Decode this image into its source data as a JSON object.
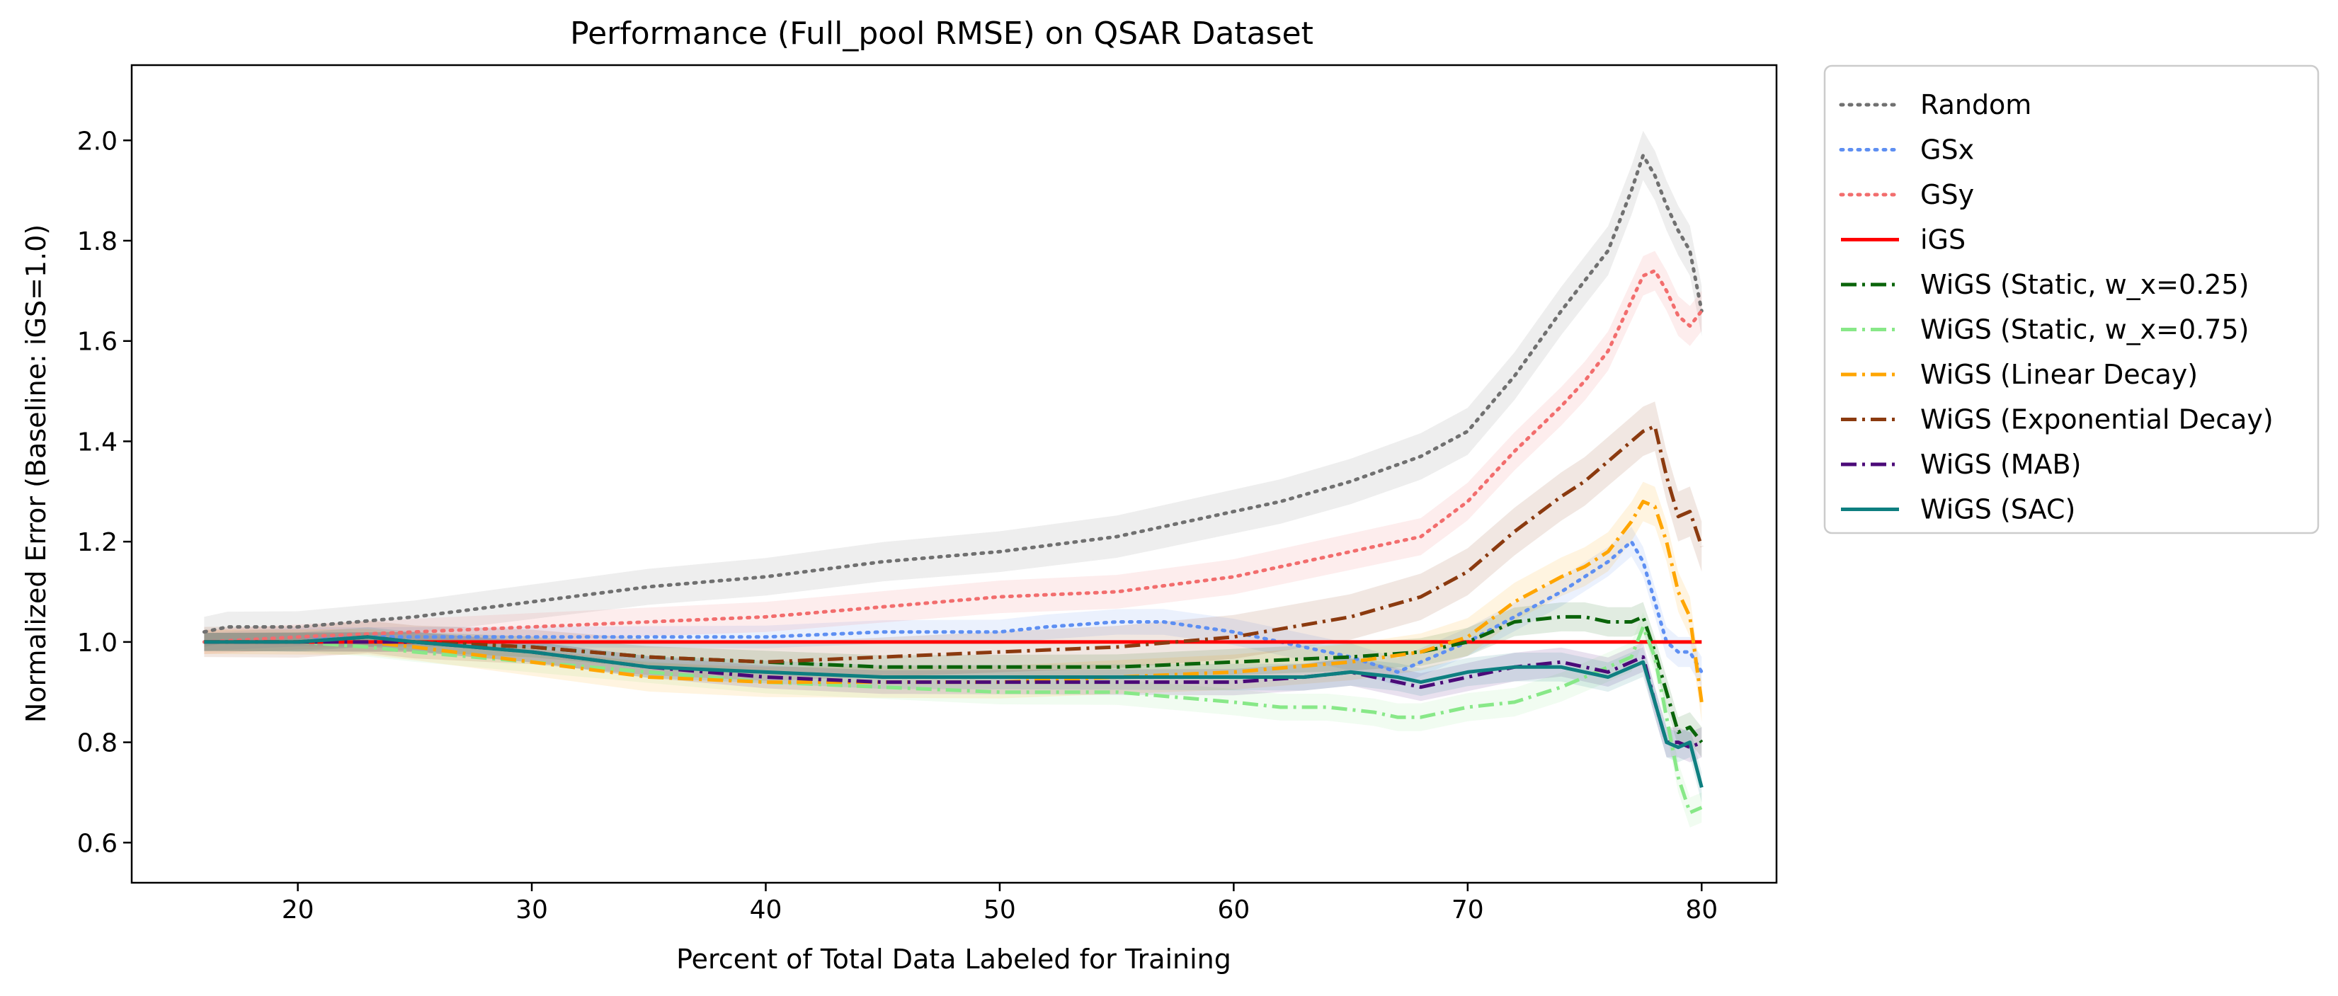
{
  "chart_data": {
    "type": "line",
    "title": "Performance (Full_pool RMSE) on QSAR Dataset",
    "xlabel": "Percent of Total Data Labeled for Training",
    "ylabel": "Normalized Error (Baseline: iGS=1.0)",
    "xlim": [
      12.9,
      83.2
    ],
    "ylim": [
      0.52,
      2.15
    ],
    "xticks": [
      20,
      30,
      40,
      50,
      60,
      70,
      80
    ],
    "yticks": [
      0.6,
      0.8,
      1.0,
      1.2,
      1.4,
      1.6,
      1.8,
      2.0
    ],
    "xtick_labels": [
      "20",
      "30",
      "40",
      "50",
      "60",
      "70",
      "80"
    ],
    "ytick_labels": [
      "0.6",
      "0.8",
      "1.0",
      "1.2",
      "1.4",
      "1.6",
      "1.8",
      "2.0"
    ],
    "grid": false,
    "legend_position": "outside-right-top",
    "series": [
      {
        "name": "Random",
        "color": "#707070",
        "dash": "dotted",
        "band": 0.05,
        "x": [
          16,
          17,
          20,
          25,
          30,
          35,
          40,
          45,
          50,
          55,
          58,
          60,
          62,
          65,
          68,
          70,
          72,
          74,
          75,
          76,
          77,
          77.5,
          78,
          78.5,
          79,
          79.5,
          80
        ],
        "y": [
          1.02,
          1.03,
          1.03,
          1.05,
          1.08,
          1.11,
          1.13,
          1.16,
          1.18,
          1.21,
          1.24,
          1.26,
          1.28,
          1.32,
          1.37,
          1.42,
          1.53,
          1.66,
          1.72,
          1.78,
          1.9,
          1.97,
          1.93,
          1.87,
          1.82,
          1.78,
          1.66
        ]
      },
      {
        "name": "GSx",
        "color": "#5e8ff2",
        "dash": "dotted",
        "band": 0.03,
        "x": [
          16,
          20,
          25,
          30,
          35,
          40,
          45,
          50,
          52,
          55,
          57,
          60,
          62,
          65,
          67,
          68,
          70,
          72,
          74,
          75,
          76,
          77,
          77.5,
          78,
          78.5,
          79,
          79.5,
          80
        ],
        "y": [
          1.0,
          1.01,
          1.01,
          1.01,
          1.01,
          1.01,
          1.02,
          1.02,
          1.03,
          1.04,
          1.04,
          1.02,
          1.0,
          0.97,
          0.94,
          0.96,
          1.0,
          1.05,
          1.1,
          1.13,
          1.16,
          1.2,
          1.16,
          1.08,
          1.0,
          0.98,
          0.98,
          0.94
        ]
      },
      {
        "name": "GSy",
        "color": "#f26d6d",
        "dash": "dotted",
        "band": 0.04,
        "x": [
          16,
          20,
          25,
          30,
          35,
          40,
          45,
          50,
          55,
          60,
          65,
          68,
          70,
          72,
          74,
          75,
          76,
          77,
          77.5,
          78,
          78.5,
          79,
          79.5,
          80
        ],
        "y": [
          1.0,
          1.01,
          1.02,
          1.03,
          1.04,
          1.05,
          1.07,
          1.09,
          1.1,
          1.13,
          1.18,
          1.21,
          1.28,
          1.38,
          1.47,
          1.52,
          1.58,
          1.68,
          1.73,
          1.74,
          1.7,
          1.65,
          1.63,
          1.66
        ]
      },
      {
        "name": "iGS",
        "color": "#ff0000",
        "dash": "solid",
        "band": 0,
        "x": [
          16,
          80
        ],
        "y": [
          1.0,
          1.0
        ]
      },
      {
        "name": "WiGS (Static, w_x=0.25)",
        "color": "#0a640a",
        "dash": "dashdot",
        "band": 0.03,
        "x": [
          16,
          20,
          23,
          25,
          30,
          35,
          40,
          45,
          50,
          55,
          60,
          65,
          68,
          70,
          72,
          74,
          75,
          76,
          77,
          77.5,
          78,
          78.5,
          79,
          79.5,
          80
        ],
        "y": [
          1.0,
          1.0,
          1.0,
          1.0,
          0.99,
          0.97,
          0.96,
          0.95,
          0.95,
          0.95,
          0.96,
          0.97,
          0.98,
          1.0,
          1.04,
          1.05,
          1.05,
          1.04,
          1.04,
          1.05,
          0.98,
          0.9,
          0.82,
          0.83,
          0.8
        ]
      },
      {
        "name": "WiGS (Static, w_x=0.75)",
        "color": "#88e888",
        "dash": "dashdot",
        "band": 0.03,
        "x": [
          16,
          20,
          23,
          25,
          30,
          35,
          40,
          45,
          50,
          55,
          60,
          62,
          64,
          66,
          67,
          68,
          70,
          72,
          74,
          75,
          76,
          77,
          77.5,
          78,
          78.5,
          79,
          79.5,
          80
        ],
        "y": [
          1.0,
          1.0,
          0.99,
          0.98,
          0.96,
          0.94,
          0.92,
          0.91,
          0.9,
          0.9,
          0.88,
          0.87,
          0.87,
          0.86,
          0.85,
          0.85,
          0.87,
          0.88,
          0.91,
          0.93,
          0.95,
          0.97,
          1.03,
          0.97,
          0.85,
          0.73,
          0.66,
          0.67
        ]
      },
      {
        "name": "WiGS (Linear Decay)",
        "color": "#ffa500",
        "dash": "dashdot",
        "band": 0.04,
        "x": [
          16,
          20,
          23,
          25,
          30,
          35,
          40,
          45,
          50,
          55,
          60,
          65,
          68,
          70,
          72,
          74,
          75,
          76,
          77,
          77.5,
          78,
          78.5,
          79,
          79.5,
          80
        ],
        "y": [
          1.0,
          1.0,
          1.0,
          0.99,
          0.96,
          0.93,
          0.92,
          0.92,
          0.92,
          0.93,
          0.94,
          0.96,
          0.98,
          1.01,
          1.08,
          1.13,
          1.15,
          1.18,
          1.24,
          1.28,
          1.27,
          1.2,
          1.1,
          1.05,
          0.88
        ]
      },
      {
        "name": "WiGS (Exponential Decay)",
        "color": "#8b3a0f",
        "dash": "dashdot",
        "band": 0.05,
        "x": [
          16,
          20,
          23,
          25,
          30,
          35,
          40,
          45,
          50,
          55,
          60,
          65,
          68,
          70,
          72,
          74,
          75,
          76,
          77,
          77.5,
          78,
          78.5,
          79,
          79.5,
          80
        ],
        "y": [
          1.0,
          1.0,
          1.01,
          1.0,
          0.99,
          0.97,
          0.96,
          0.97,
          0.98,
          0.99,
          1.01,
          1.05,
          1.09,
          1.14,
          1.22,
          1.29,
          1.32,
          1.36,
          1.4,
          1.42,
          1.43,
          1.33,
          1.25,
          1.26,
          1.19
        ]
      },
      {
        "name": "WiGS (MAB)",
        "color": "#4b0a78",
        "dash": "dashdot",
        "band": 0.03,
        "x": [
          16,
          20,
          23,
          25,
          30,
          35,
          40,
          45,
          50,
          55,
          60,
          63,
          65,
          67,
          68,
          70,
          72,
          74,
          75,
          76,
          77,
          77.5,
          78,
          78.5,
          79,
          79.5,
          80
        ],
        "y": [
          1.0,
          1.0,
          1.0,
          1.0,
          0.98,
          0.95,
          0.93,
          0.92,
          0.92,
          0.92,
          0.92,
          0.93,
          0.94,
          0.92,
          0.91,
          0.93,
          0.95,
          0.96,
          0.95,
          0.94,
          0.96,
          0.97,
          0.88,
          0.8,
          0.8,
          0.79,
          0.8
        ]
      },
      {
        "name": "WiGS (SAC)",
        "color": "#0e7f80",
        "dash": "solid",
        "band": 0.03,
        "x": [
          16,
          20,
          23,
          25,
          30,
          35,
          40,
          45,
          50,
          55,
          60,
          63,
          65,
          67,
          68,
          70,
          72,
          74,
          75,
          76,
          77,
          77.5,
          78,
          78.5,
          79,
          79.5,
          80
        ],
        "y": [
          1.0,
          1.0,
          1.01,
          1.0,
          0.98,
          0.95,
          0.94,
          0.93,
          0.93,
          0.93,
          0.93,
          0.93,
          0.94,
          0.93,
          0.92,
          0.94,
          0.95,
          0.95,
          0.94,
          0.93,
          0.95,
          0.96,
          0.88,
          0.8,
          0.79,
          0.8,
          0.71
        ]
      }
    ]
  }
}
